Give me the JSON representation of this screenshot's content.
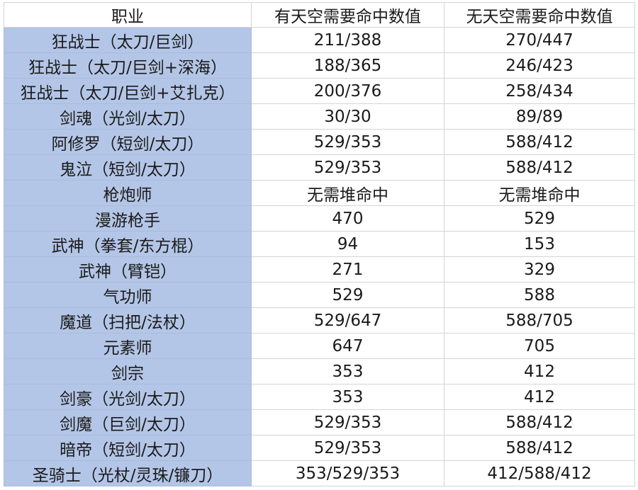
{
  "headers": [
    "职业",
    "有天空需要命中数值",
    "无天空需要命中数值"
  ],
  "rows": [
    [
      "狂战士（太刀/巨剑）",
      "211/388",
      "270/447"
    ],
    [
      "狂战士（太刀/巨剑+深海）",
      "188/365",
      "246/423"
    ],
    [
      "狂战士（太刀/巨剑+艾扎克）",
      "200/376",
      "258/434"
    ],
    [
      "剑魂（光剑/太刀）",
      "30/30",
      "89/89"
    ],
    [
      "阿修罗（短剑/太刀）",
      "529/353",
      "588/412"
    ],
    [
      "鬼泣（短剑/太刀）",
      "529/353",
      "588/412"
    ],
    [
      "枪炮师",
      "无需堆命中",
      "无需堆命中"
    ],
    [
      "漫游枪手",
      "470",
      "529"
    ],
    [
      "武神（拳套/东方棍）",
      "94",
      "153"
    ],
    [
      "武神（臂铠）",
      "271",
      "329"
    ],
    [
      "气功师",
      "529",
      "588"
    ],
    [
      "魔道（扫把/法杖）",
      "529/647",
      "588/705"
    ],
    [
      "元素师",
      "647",
      "705"
    ],
    [
      "剑宗",
      "353",
      "412"
    ],
    [
      "剑豪（光剑/太刀）",
      "353",
      "412"
    ],
    [
      "剑魔（巨剑/太刀）",
      "529/353",
      "588/412"
    ],
    [
      "暗帝（短剑/太刀）",
      "529/353",
      "588/412"
    ],
    [
      "圣骑士（光杖/灵珠/镰刀）",
      "353/529/353",
      "412/588/412"
    ]
  ],
  "colors": {
    "job_column_bg": "#b4c6e7",
    "grid_line": "#d4d4d4"
  }
}
